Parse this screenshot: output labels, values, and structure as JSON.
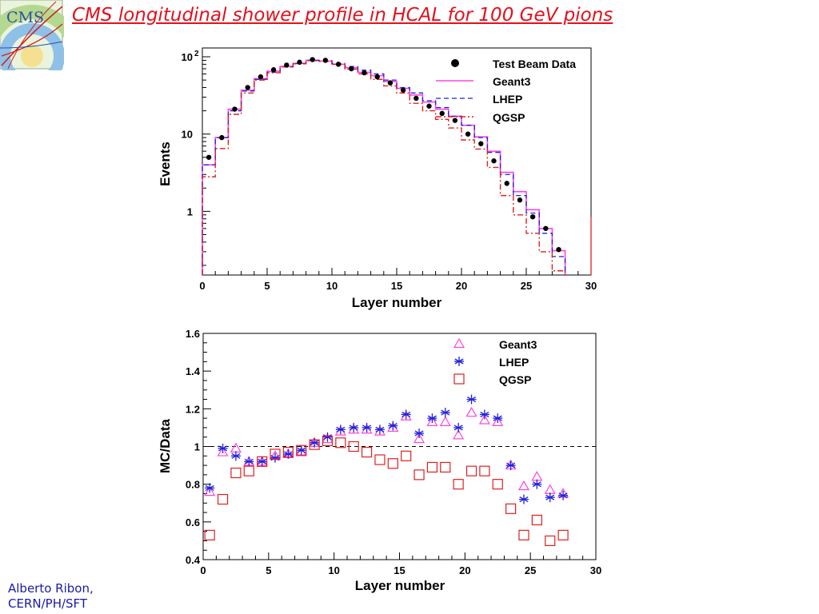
{
  "slide": {
    "title": "CMS longitudinal shower profile in HCAL for 100 GeV pions",
    "logo_text": "CMS",
    "author_line1": "Alberto Ribon,",
    "author_line2": "CERN/PH/SFT"
  },
  "colors": {
    "title": "#e4101c",
    "data": "#000000",
    "geant3": "#ff44dd",
    "lhep": "#2020e0",
    "qgsp": "#e02020",
    "author": "#1a1aa6"
  },
  "chart_data": [
    {
      "type": "histogram",
      "xlabel": "Layer number",
      "ylabel": "Events",
      "xlim": [
        0,
        30
      ],
      "ylim": [
        0.15,
        130
      ],
      "yscale": "log",
      "x_ticks": [
        "0",
        "5",
        "10",
        "15",
        "20",
        "25",
        "30"
      ],
      "y_ticks": [
        "1",
        "10"
      ],
      "y_tick_top": {
        "base": "10",
        "exp": "2"
      },
      "legend_position": "top-right",
      "legend": [
        "Test Beam Data",
        "Geant3",
        "LHEP",
        "QGSP"
      ],
      "bin_edges": [
        0,
        1,
        2,
        3,
        4,
        5,
        6,
        7,
        8,
        9,
        10,
        11,
        12,
        13,
        14,
        15,
        16,
        17,
        18,
        19,
        20,
        21,
        22,
        23,
        24,
        25,
        26,
        27,
        28
      ],
      "series": [
        {
          "name": "Test Beam Data",
          "style": "points",
          "x": [
            0.5,
            1.5,
            2.5,
            3.5,
            4.5,
            5.5,
            6.5,
            7.5,
            8.5,
            9.5,
            10.5,
            11.5,
            12.5,
            13.5,
            14.5,
            15.5,
            16.5,
            17.5,
            18.5,
            19.5,
            20.5,
            21.5,
            22.5,
            23.5,
            24.5,
            25.5,
            26.5,
            27.5
          ],
          "y": [
            5.0,
            9.0,
            21,
            40,
            55,
            68,
            78,
            85,
            92,
            90,
            80,
            70,
            62,
            55,
            46,
            37,
            29,
            23,
            18.5,
            15,
            10,
            7.5,
            4.5,
            2.3,
            1.4,
            0.85,
            0.6,
            0.32
          ]
        },
        {
          "name": "Geant3",
          "style": "solid",
          "y": [
            4.0,
            9.0,
            21,
            37,
            52,
            65,
            75,
            82,
            90,
            88,
            80,
            72,
            63,
            57,
            48,
            39,
            32,
            26,
            21,
            17,
            13,
            9.2,
            6.0,
            3.2,
            1.8,
            1.05,
            0.6,
            0.31
          ]
        },
        {
          "name": "LHEP",
          "style": "dashed",
          "y": [
            4.0,
            9.0,
            20,
            36,
            51,
            63,
            74,
            82,
            90,
            89,
            82,
            75,
            67,
            60,
            50,
            40,
            34,
            27,
            22,
            17,
            13,
            9.0,
            5.8,
            3.0,
            1.6,
            0.95,
            0.52,
            0.26
          ]
        },
        {
          "name": "QGSP",
          "style": "dashdot",
          "y": [
            2.8,
            6.5,
            18,
            34,
            50,
            62,
            74,
            81,
            89,
            87,
            80,
            69,
            60,
            51,
            42,
            34,
            25,
            20,
            15.5,
            12,
            8.4,
            6.4,
            3.7,
            1.6,
            0.9,
            0.52,
            0.3,
            0.17
          ]
        }
      ]
    },
    {
      "type": "scatter",
      "xlabel": "Layer number",
      "ylabel": "MC/Data",
      "xlim": [
        0,
        30
      ],
      "ylim": [
        0.4,
        1.6
      ],
      "x_ticks": [
        "0",
        "5",
        "10",
        "15",
        "20",
        "25",
        "30"
      ],
      "y_ticks": [
        "0.4",
        "0.6",
        "0.8",
        "1",
        "1.2",
        "1.4",
        "1.6"
      ],
      "reference_line": 1,
      "legend_position": "top-right",
      "legend": [
        "Geant3",
        "LHEP",
        "QGSP"
      ],
      "x": [
        0.5,
        1.5,
        2.5,
        3.5,
        4.5,
        5.5,
        6.5,
        7.5,
        8.5,
        9.5,
        10.5,
        11.5,
        12.5,
        13.5,
        14.5,
        15.5,
        16.5,
        17.5,
        18.5,
        19.5,
        20.5,
        21.5,
        22.5,
        23.5,
        24.5,
        25.5,
        26.5,
        27.5
      ],
      "series": [
        {
          "name": "Geant3",
          "marker": "triangle",
          "values": [
            0.76,
            0.97,
            0.99,
            0.92,
            0.92,
            0.95,
            0.96,
            0.97,
            1.02,
            1.04,
            1.08,
            1.09,
            1.09,
            1.08,
            1.1,
            1.16,
            1.04,
            1.13,
            1.13,
            1.06,
            1.18,
            1.14,
            1.13,
            0.9,
            0.79,
            0.84,
            0.77,
            0.75
          ]
        },
        {
          "name": "LHEP",
          "marker": "star",
          "values": [
            0.78,
            0.99,
            0.95,
            0.92,
            0.92,
            0.94,
            0.96,
            0.98,
            1.02,
            1.05,
            1.09,
            1.1,
            1.1,
            1.09,
            1.11,
            1.17,
            1.07,
            1.15,
            1.18,
            1.1,
            1.25,
            1.17,
            1.15,
            0.9,
            0.72,
            0.8,
            0.73,
            0.74
          ]
        },
        {
          "name": "QGSP",
          "marker": "square",
          "values": [
            0.53,
            0.72,
            0.86,
            0.87,
            0.92,
            0.96,
            0.97,
            0.98,
            1.01,
            1.03,
            1.02,
            1.0,
            0.97,
            0.93,
            0.91,
            0.95,
            0.85,
            0.89,
            0.89,
            0.8,
            0.87,
            0.87,
            0.8,
            0.67,
            0.53,
            0.61,
            0.5,
            0.53
          ]
        }
      ]
    }
  ]
}
